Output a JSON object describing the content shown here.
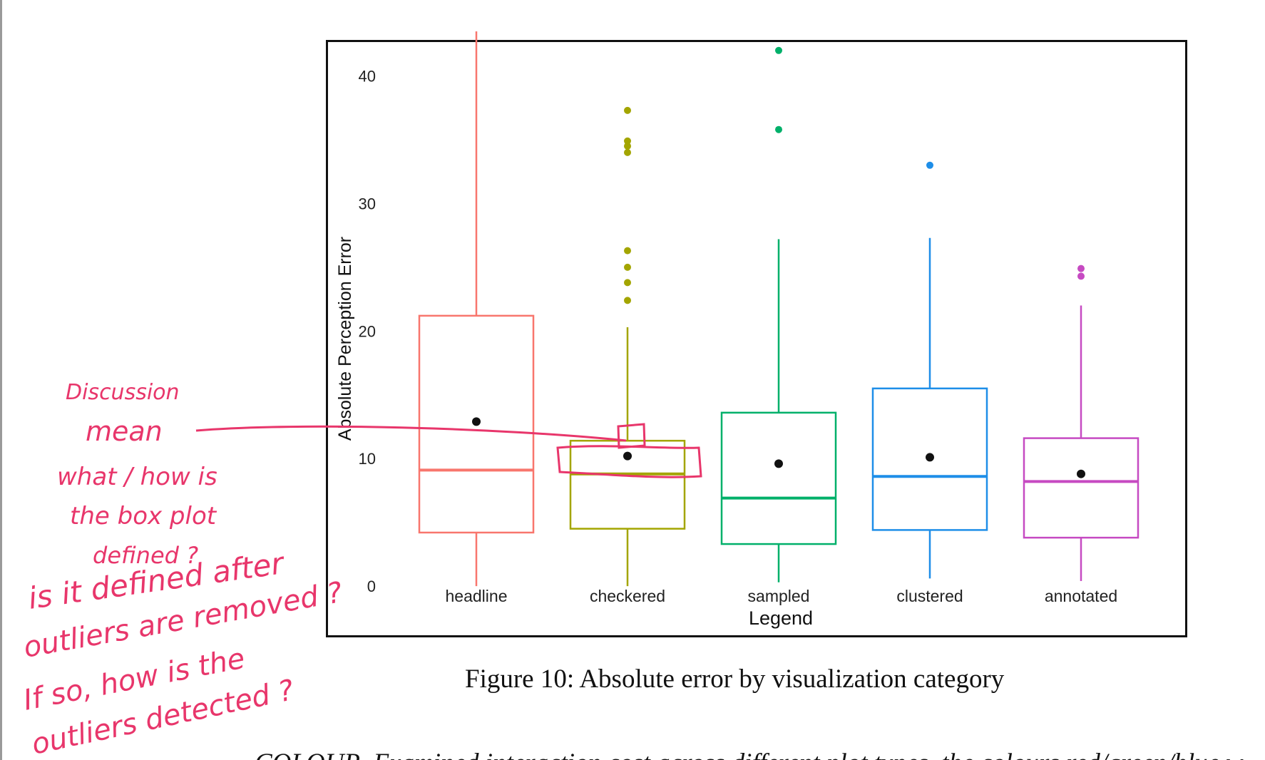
{
  "chart_data": {
    "type": "box",
    "ylabel": "Absolute Perception Error",
    "xlabel": "Legend",
    "ylim": [
      -1,
      44
    ],
    "yticks": [
      0,
      10,
      20,
      30,
      40
    ],
    "categories": [
      "headline",
      "checkered",
      "sampled",
      "clustered",
      "annotated"
    ],
    "boxes": [
      {
        "category": "headline",
        "color": "#f8766d",
        "whisker_low": 0,
        "q1": 4.2,
        "median": 9.1,
        "q3": 21.2,
        "whisker_high": 43.5,
        "mean": 12.9,
        "outliers": []
      },
      {
        "category": "checkered",
        "color": "#a3a500",
        "whisker_low": 0,
        "q1": 4.5,
        "median": 8.8,
        "q3": 11.4,
        "whisker_high": 20.3,
        "mean": 10.2,
        "outliers": [
          22.4,
          23.8,
          25.0,
          26.3,
          34.0,
          34.5,
          34.9,
          37.3
        ]
      },
      {
        "category": "sampled",
        "color": "#00b06a",
        "whisker_low": 0.3,
        "q1": 3.3,
        "median": 6.9,
        "q3": 13.6,
        "whisker_high": 27.2,
        "mean": 9.6,
        "outliers": [
          35.8,
          42.0
        ]
      },
      {
        "category": "clustered",
        "color": "#1e8ee8",
        "whisker_low": 0.6,
        "q1": 4.4,
        "median": 8.6,
        "q3": 15.5,
        "whisker_high": 27.3,
        "mean": 10.1,
        "outliers": [
          33.0
        ]
      },
      {
        "category": "annotated",
        "color": "#c64ac2",
        "whisker_low": 0.4,
        "q1": 3.8,
        "median": 8.2,
        "q3": 11.6,
        "whisker_high": 22.0,
        "mean": 8.8,
        "outliers": [
          24.3,
          24.9
        ]
      }
    ],
    "mean_marker_color": "#111111",
    "grid": false,
    "legend": "none"
  },
  "caption": "Figure 10: Absolute error by visualization category",
  "body_text": "COLOUR. Examined interaction cost across different plot types. the colours red/green/blue w",
  "annotations": {
    "top": "Discussion",
    "lines": [
      "mean",
      "what / how is",
      "the box plot",
      "defined ?",
      "is it defined after",
      "outliers are removed ?",
      "If so, how is the",
      "outliers detected ?"
    ],
    "color": "#e8366b"
  }
}
